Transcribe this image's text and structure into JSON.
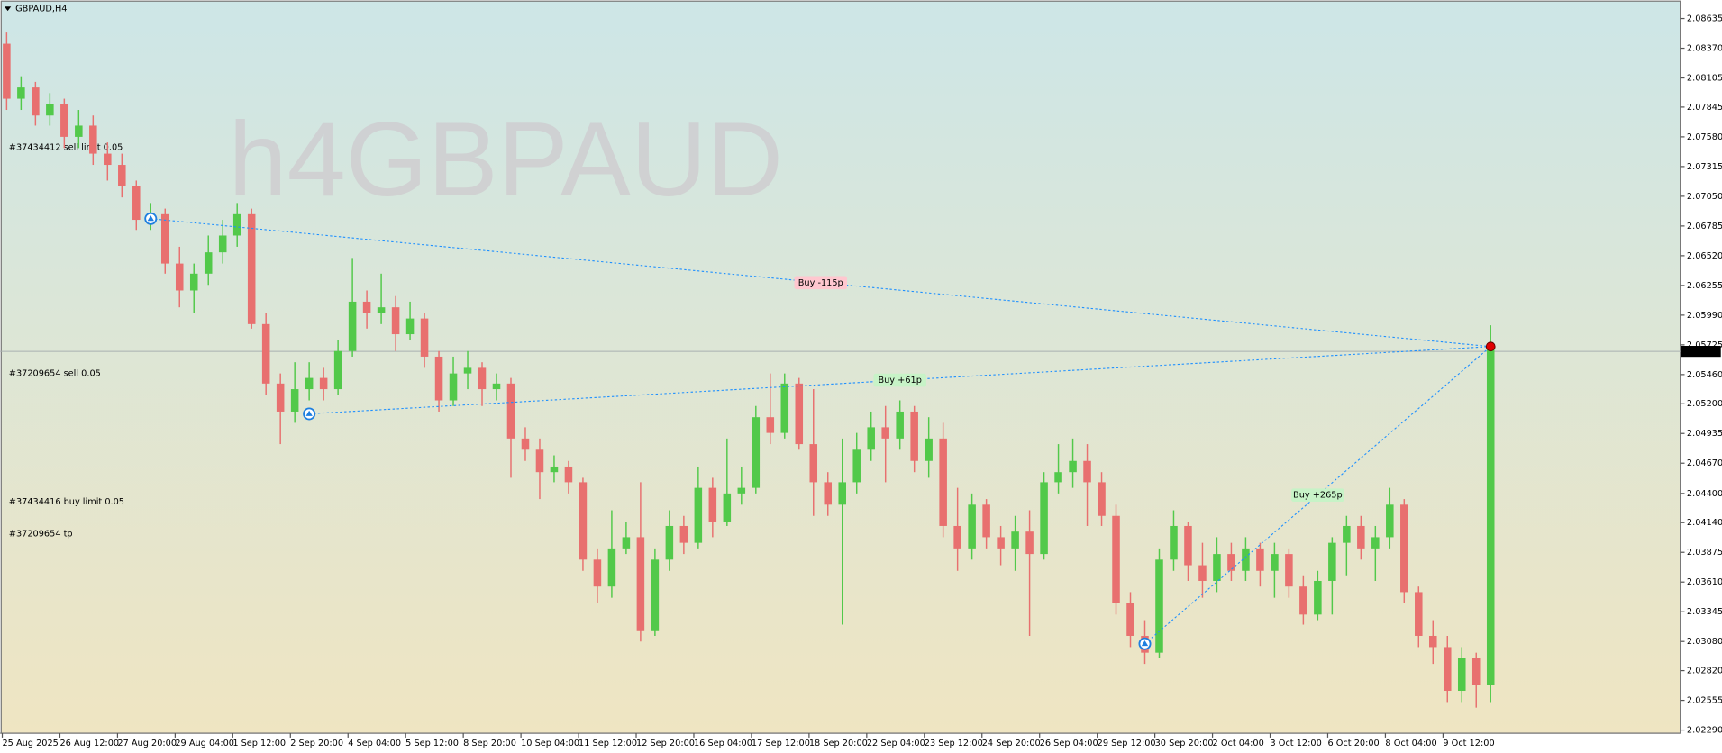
{
  "chart_data": {
    "type": "candlestick",
    "title": "GBPAUD,H4",
    "watermark": "h4GBPAUD",
    "up_color": "#52c94a",
    "down_color": "#e8706f",
    "open": [
      2.0841,
      2.0792,
      2.0802,
      2.0777,
      2.0787,
      2.0758,
      2.0768,
      2.0743,
      2.0733,
      2.0714,
      2.0684,
      2.0689,
      2.0645,
      2.0621,
      2.0636,
      2.0655,
      2.067,
      2.0689,
      2.0591,
      2.0538,
      2.0513,
      2.0533,
      2.0543,
      2.0533,
      2.0567,
      2.0611,
      2.0601,
      2.0606,
      2.0582,
      2.0596,
      2.0562,
      2.0523,
      2.0547,
      2.0552,
      2.0533,
      2.0538,
      2.0489,
      2.0479,
      2.0459,
      2.0464,
      2.045,
      2.0381,
      2.0357,
      2.0391,
      2.0401,
      2.0318,
      2.0381,
      2.0411,
      2.0396,
      2.0445,
      2.0415,
      2.044,
      2.0445,
      2.0508,
      2.0494,
      2.0538,
      2.0484,
      2.045,
      2.043,
      2.045,
      2.0479,
      2.0499,
      2.0489,
      2.0513,
      2.0469,
      2.0489,
      2.0411,
      2.0391,
      2.043,
      2.0401,
      2.0391,
      2.0406,
      2.0386,
      2.045,
      2.0459,
      2.0469,
      2.045,
      2.042,
      2.0342,
      2.0313,
      2.0298,
      2.0381,
      2.0411,
      2.0376,
      2.0362,
      2.0386,
      2.0371,
      2.0391,
      2.0371,
      2.0386,
      2.0357,
      2.0332,
      2.0362,
      2.0396,
      2.0411,
      2.0391,
      2.0401,
      2.043,
      2.0352,
      2.0313,
      2.0303,
      2.0264,
      2.0293,
      2.0269
    ],
    "high": [
      2.0851,
      2.0812,
      2.0807,
      2.0797,
      2.0792,
      2.0782,
      2.0777,
      2.0753,
      2.0743,
      2.0719,
      2.0699,
      2.0694,
      2.066,
      2.0645,
      2.067,
      2.0684,
      2.0699,
      2.0694,
      2.0601,
      2.0547,
      2.0557,
      2.0557,
      2.0552,
      2.0577,
      2.065,
      2.0621,
      2.0636,
      2.0616,
      2.0611,
      2.0601,
      2.0567,
      2.0562,
      2.0567,
      2.0557,
      2.0547,
      2.0543,
      2.0499,
      2.0489,
      2.0474,
      2.0469,
      2.0454,
      2.0391,
      2.0425,
      2.0415,
      2.045,
      2.0391,
      2.0425,
      2.042,
      2.0464,
      2.0454,
      2.0489,
      2.0464,
      2.0518,
      2.0547,
      2.0547,
      2.0543,
      2.0533,
      2.0459,
      2.0489,
      2.0494,
      2.0513,
      2.0518,
      2.0523,
      2.0518,
      2.0508,
      2.0503,
      2.0445,
      2.044,
      2.0435,
      2.0411,
      2.042,
      2.0425,
      2.0459,
      2.0484,
      2.0489,
      2.0484,
      2.0459,
      2.043,
      2.0352,
      2.0327,
      2.0391,
      2.0425,
      2.0415,
      2.0396,
      2.0401,
      2.0396,
      2.0401,
      2.0396,
      2.0396,
      2.0391,
      2.0367,
      2.0371,
      2.0401,
      2.042,
      2.042,
      2.0411,
      2.0445,
      2.0435,
      2.0357,
      2.0327,
      2.0313,
      2.0303,
      2.0298,
      2.059
    ],
    "low": [
      2.0782,
      2.0782,
      2.0768,
      2.0768,
      2.0748,
      2.0748,
      2.0733,
      2.0719,
      2.0704,
      2.0675,
      2.0675,
      2.0636,
      2.0606,
      2.0601,
      2.0626,
      2.0645,
      2.066,
      2.0587,
      2.0528,
      2.0484,
      2.0503,
      2.0523,
      2.0523,
      2.0528,
      2.0562,
      2.0587,
      2.0591,
      2.0567,
      2.0577,
      2.0552,
      2.0513,
      2.0518,
      2.0533,
      2.0518,
      2.0523,
      2.0454,
      2.0469,
      2.0435,
      2.045,
      2.044,
      2.0371,
      2.0342,
      2.0347,
      2.0386,
      2.0308,
      2.0313,
      2.0371,
      2.0386,
      2.0391,
      2.0401,
      2.0411,
      2.043,
      2.044,
      2.0484,
      2.0489,
      2.0479,
      2.042,
      2.042,
      2.0323,
      2.044,
      2.0469,
      2.045,
      2.0479,
      2.0459,
      2.0454,
      2.0401,
      2.0371,
      2.0381,
      2.0391,
      2.0376,
      2.0371,
      2.0313,
      2.0381,
      2.044,
      2.0445,
      2.0411,
      2.0411,
      2.0332,
      2.0303,
      2.0288,
      2.0293,
      2.0371,
      2.0362,
      2.0347,
      2.0352,
      2.0362,
      2.0362,
      2.0357,
      2.0347,
      2.0347,
      2.0323,
      2.0327,
      2.0332,
      2.0367,
      2.0381,
      2.0362,
      2.0391,
      2.0342,
      2.0303,
      2.0288,
      2.0254,
      2.0254,
      2.0249,
      2.0254
    ],
    "close": [
      2.0792,
      2.0802,
      2.0777,
      2.0787,
      2.0758,
      2.0768,
      2.0743,
      2.0733,
      2.0714,
      2.0684,
      2.0689,
      2.0645,
      2.0621,
      2.0636,
      2.0655,
      2.067,
      2.0689,
      2.0591,
      2.0538,
      2.0513,
      2.0533,
      2.0543,
      2.0533,
      2.0567,
      2.0611,
      2.0601,
      2.0606,
      2.0582,
      2.0596,
      2.0562,
      2.0523,
      2.0547,
      2.0552,
      2.0533,
      2.0538,
      2.0489,
      2.0479,
      2.0459,
      2.0464,
      2.045,
      2.0381,
      2.0357,
      2.0391,
      2.0401,
      2.0318,
      2.0381,
      2.0411,
      2.0396,
      2.0445,
      2.0415,
      2.044,
      2.0445,
      2.0508,
      2.0494,
      2.0538,
      2.0484,
      2.045,
      2.043,
      2.045,
      2.0479,
      2.0499,
      2.0489,
      2.0513,
      2.0469,
      2.0489,
      2.0411,
      2.0391,
      2.043,
      2.0401,
      2.0391,
      2.0406,
      2.0386,
      2.045,
      2.0459,
      2.0469,
      2.045,
      2.042,
      2.0342,
      2.0313,
      2.0298,
      2.0381,
      2.0411,
      2.0376,
      2.0362,
      2.0386,
      2.0371,
      2.0391,
      2.0371,
      2.0386,
      2.0357,
      2.0332,
      2.0362,
      2.0396,
      2.0411,
      2.0391,
      2.0401,
      2.043,
      2.0352,
      2.0313,
      2.0303,
      2.0264,
      2.0293,
      2.0269,
      2.0571
    ],
    "xticks": [
      {
        "value": 0,
        "label": "25 Aug 2025"
      },
      {
        "value": 4,
        "label": "26 Aug 12:00"
      },
      {
        "value": 8,
        "label": "27 Aug 20:00"
      },
      {
        "value": 12,
        "label": "29 Aug 04:00"
      },
      {
        "value": 16,
        "label": "1 Sep 12:00"
      },
      {
        "value": 20,
        "label": "2 Sep 20:00"
      },
      {
        "value": 24,
        "label": "4 Sep 04:00"
      },
      {
        "value": 28,
        "label": "5 Sep 12:00"
      },
      {
        "value": 32,
        "label": "8 Sep 20:00"
      },
      {
        "value": 36,
        "label": "10 Sep 04:00"
      },
      {
        "value": 40,
        "label": "11 Sep 12:00"
      },
      {
        "value": 44,
        "label": "12 Sep 20:00"
      },
      {
        "value": 48,
        "label": "16 Sep 04:00"
      },
      {
        "value": 52,
        "label": "17 Sep 12:00"
      },
      {
        "value": 56,
        "label": "18 Sep 20:00"
      },
      {
        "value": 60,
        "label": "22 Sep 04:00"
      },
      {
        "value": 64,
        "label": "23 Sep 12:00"
      },
      {
        "value": 68,
        "label": "24 Sep 20:00"
      },
      {
        "value": 72,
        "label": "26 Sep 04:00"
      },
      {
        "value": 76,
        "label": "29 Sep 12:00"
      },
      {
        "value": 80,
        "label": "30 Sep 20:00"
      },
      {
        "value": 84,
        "label": "2 Oct 04:00"
      },
      {
        "value": 88,
        "label": "3 Oct 12:00"
      },
      {
        "value": 92,
        "label": "6 Oct 20:00"
      },
      {
        "value": 96,
        "label": "8 Oct 04:00"
      },
      {
        "value": 100,
        "label": "9 Oct 12:00"
      }
    ],
    "ylim": [
      2.02262,
      2.088
    ],
    "yticks": [
      2.08635,
      {
        "value": 2.0837,
        "label": "2.08370"
      },
      2.08105,
      2.07845,
      {
        "value": 2.0758,
        "label": "2.07580"
      },
      2.07315,
      {
        "value": 2.0705,
        "label": "2.07050"
      },
      2.06785,
      {
        "value": 2.0652,
        "label": "2.06520"
      },
      2.06255,
      {
        "value": 2.0599,
        "label": "2.05990"
      },
      2.05725,
      {
        "value": 2.0546,
        "label": "2.05460"
      },
      {
        "value": 2.052,
        "label": "2.05200"
      },
      2.04935,
      {
        "value": 2.0467,
        "label": "2.04670"
      },
      {
        "value": 2.044,
        "label": "2.04400"
      },
      {
        "value": 2.0414,
        "label": "2.04140"
      },
      2.03875,
      {
        "value": 2.0361,
        "label": "2.03610"
      },
      2.03345,
      {
        "value": 2.0308,
        "label": "2.03080"
      },
      {
        "value": 2.0282,
        "label": "2.02820"
      },
      2.02555,
      {
        "value": 2.0229,
        "label": "2.02290"
      }
    ],
    "current_price": 2.05667,
    "trades": [
      {
        "label": "Buy -115p",
        "entry_index": 10,
        "entry_price": 2.0685,
        "exit_index": 103,
        "exit_price": 2.0571
      },
      {
        "label": "Buy +61p",
        "entry_index": 21,
        "entry_price": 2.0511,
        "exit_index": 103,
        "exit_price": 2.0571
      },
      {
        "label": "Buy +265p",
        "entry_index": 79,
        "entry_price": 2.0306,
        "exit_index": 103,
        "exit_price": 2.0571
      }
    ],
    "order_labels": [
      "#37434412 sell limit 0.05",
      "#37209654 sell 0.05",
      "#37434416 buy limit 0.05",
      "#37209654 tp"
    ]
  }
}
